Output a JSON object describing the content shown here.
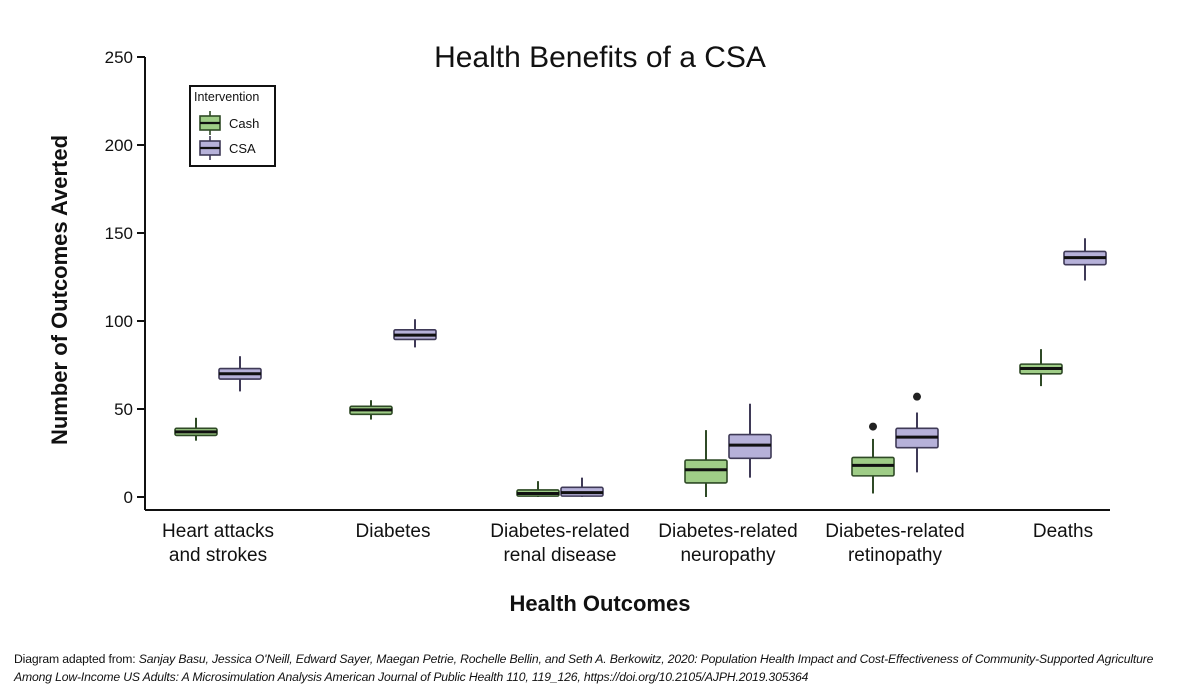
{
  "chart_data": {
    "type": "box",
    "title": "Health Benefits of a CSA",
    "xlabel": "Health Outcomes",
    "ylabel": "Number of Outcomes Averted",
    "ylim": [
      -7,
      250
    ],
    "yticks": [
      0,
      50,
      100,
      150,
      200,
      250
    ],
    "grid": false,
    "legend": {
      "title": "Intervention",
      "position": "top-left"
    },
    "categories": [
      [
        "Heart attacks",
        "and strokes"
      ],
      [
        "Diabetes"
      ],
      [
        "Diabetes-related",
        "renal disease"
      ],
      [
        "Diabetes-related",
        "neuropathy"
      ],
      [
        "Diabetes-related",
        "retinopathy"
      ],
      [
        "Deaths"
      ]
    ],
    "series": [
      {
        "name": "Cash",
        "color": "#9fcd87",
        "boxes": [
          {
            "whisker_low": 32,
            "q1": 35,
            "median": 37,
            "q3": 39,
            "whisker_high": 45,
            "outliers": []
          },
          {
            "whisker_low": 44,
            "q1": 47,
            "median": 49.5,
            "q3": 51.5,
            "whisker_high": 55,
            "outliers": []
          },
          {
            "whisker_low": 0,
            "q1": 0.5,
            "median": 2,
            "q3": 4,
            "whisker_high": 9,
            "outliers": []
          },
          {
            "whisker_low": 0,
            "q1": 8,
            "median": 15.5,
            "q3": 21,
            "whisker_high": 38,
            "outliers": []
          },
          {
            "whisker_low": 2,
            "q1": 12,
            "median": 18,
            "q3": 22.5,
            "whisker_high": 33,
            "outliers": [
              40
            ]
          },
          {
            "whisker_low": 63,
            "q1": 70,
            "median": 73,
            "q3": 75.5,
            "whisker_high": 84,
            "outliers": []
          }
        ]
      },
      {
        "name": "CSA",
        "color": "#b6b1d9",
        "boxes": [
          {
            "whisker_low": 60,
            "q1": 67,
            "median": 70,
            "q3": 73,
            "whisker_high": 80,
            "outliers": []
          },
          {
            "whisker_low": 85,
            "q1": 89.5,
            "median": 92,
            "q3": 95,
            "whisker_high": 101,
            "outliers": []
          },
          {
            "whisker_low": 0,
            "q1": 0.5,
            "median": 2.5,
            "q3": 5.5,
            "whisker_high": 11,
            "outliers": []
          },
          {
            "whisker_low": 11,
            "q1": 22,
            "median": 29.5,
            "q3": 35.5,
            "whisker_high": 53,
            "outliers": []
          },
          {
            "whisker_low": 14,
            "q1": 28,
            "median": 34,
            "q3": 39,
            "whisker_high": 48,
            "outliers": [
              57
            ]
          },
          {
            "whisker_low": 123,
            "q1": 132,
            "median": 136,
            "q3": 139.5,
            "whisker_high": 147,
            "outliers": []
          }
        ]
      }
    ]
  },
  "caption": {
    "prefix": "Diagram adapted from: ",
    "citation": "Sanjay Basu, Jessica O'Neill, Edward Sayer, Maegan Petrie, Rochelle Bellin, and Seth A. Berkowitz, 2020: Population Health Impact and Cost-Effectiveness of Community-Supported Agriculture Among Low-Income US Adults: A Microsimulation Analysis American Journal of Public Health 110, 119_126, https://doi.org/10.2105/AJPH.2019.305364"
  }
}
